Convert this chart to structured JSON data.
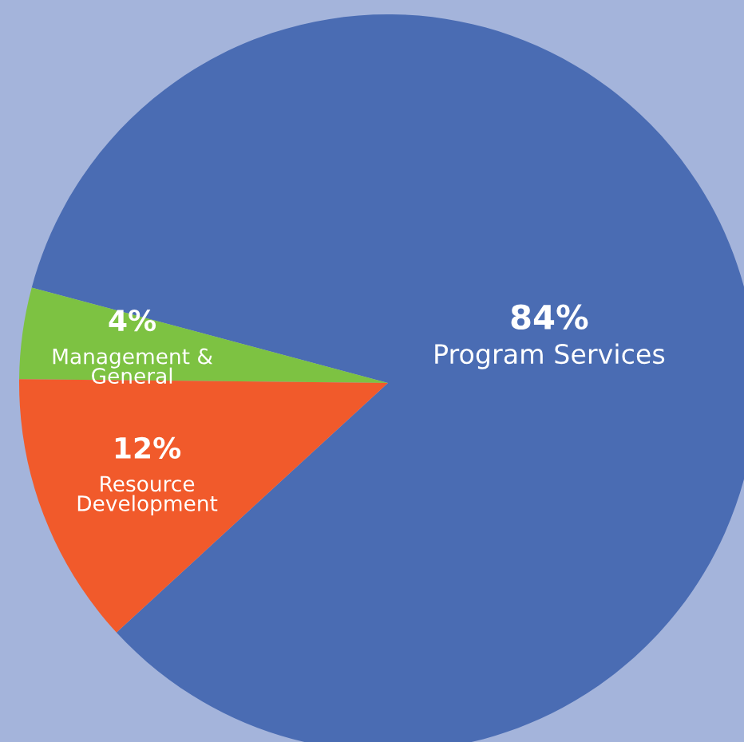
{
  "chart_data": {
    "type": "pie",
    "categories": [
      "Program Services",
      "Management &\nGeneral",
      "Resource\nDevelopment"
    ],
    "values": [
      84,
      4,
      12
    ],
    "value_labels": [
      "84%",
      "4%",
      "12%"
    ],
    "colors": [
      "#4a6cb3",
      "#7dc242",
      "#f15a2b"
    ],
    "legend": false
  }
}
